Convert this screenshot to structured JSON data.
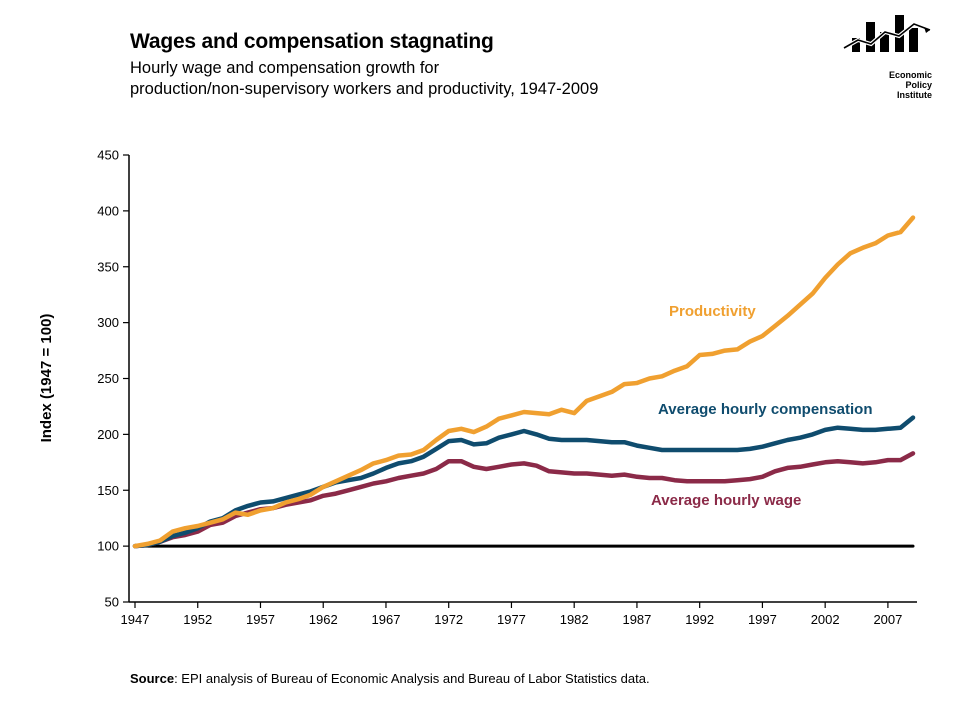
{
  "header": {
    "title": "Wages and compensation stagnating",
    "subtitle_line1": "Hourly wage and compensation growth for",
    "subtitle_line2": "production/non-supervisory workers and productivity, 1947-2009"
  },
  "logo": {
    "line1": "Economic",
    "line2": "Policy",
    "line3": "Institute"
  },
  "source": {
    "label": "Source",
    "text": ": EPI analysis of Bureau of Economic Analysis and Bureau of Labor Statistics data."
  },
  "chart_data": {
    "type": "line",
    "title": "Wages and compensation stagnating",
    "ylabel": "Index (1947 = 100)",
    "xlabel": "",
    "xlim": [
      1947,
      2009
    ],
    "ylim": [
      50,
      450
    ],
    "yticks": [
      50,
      100,
      150,
      200,
      250,
      300,
      350,
      400,
      450
    ],
    "xticks": [
      1947,
      1952,
      1957,
      1962,
      1967,
      1972,
      1977,
      1982,
      1987,
      1992,
      1997,
      2002,
      2007
    ],
    "grid": false,
    "legend": "inline",
    "x": [
      1947,
      1948,
      1949,
      1950,
      1951,
      1952,
      1953,
      1954,
      1955,
      1956,
      1957,
      1958,
      1959,
      1960,
      1961,
      1962,
      1963,
      1964,
      1965,
      1966,
      1967,
      1968,
      1969,
      1970,
      1971,
      1972,
      1973,
      1974,
      1975,
      1976,
      1977,
      1978,
      1979,
      1980,
      1981,
      1982,
      1983,
      1984,
      1985,
      1986,
      1987,
      1988,
      1989,
      1990,
      1991,
      1992,
      1993,
      1994,
      1995,
      1996,
      1997,
      1998,
      1999,
      2000,
      2001,
      2002,
      2003,
      2004,
      2005,
      2006,
      2007,
      2008,
      2009
    ],
    "series": [
      {
        "name": "Productivity",
        "color": "#f0a030",
        "values": [
          100,
          102,
          105,
          113,
          116,
          118,
          121,
          124,
          130,
          128,
          132,
          134,
          139,
          142,
          146,
          153,
          158,
          163,
          168,
          174,
          177,
          181,
          182,
          186,
          195,
          203,
          205,
          202,
          207,
          214,
          217,
          220,
          219,
          218,
          222,
          219,
          230,
          234,
          238,
          245,
          246,
          250,
          252,
          257,
          261,
          271,
          272,
          275,
          276,
          283,
          288,
          297,
          306,
          316,
          326,
          340,
          352,
          362,
          367,
          371,
          378,
          381,
          394
        ]
      },
      {
        "name": "Average hourly compensation",
        "color": "#0f4c6e",
        "values": [
          100,
          101,
          104,
          109,
          112,
          116,
          122,
          125,
          132,
          136,
          139,
          140,
          143,
          146,
          149,
          153,
          157,
          159,
          161,
          165,
          170,
          174,
          176,
          180,
          187,
          194,
          195,
          191,
          192,
          197,
          200,
          203,
          200,
          196,
          195,
          195,
          195,
          194,
          193,
          193,
          190,
          188,
          186,
          186,
          186,
          186,
          186,
          186,
          186,
          187,
          189,
          192,
          195,
          197,
          200,
          204,
          206,
          205,
          204,
          204,
          205,
          206,
          215
        ]
      },
      {
        "name": "Average hourly wage",
        "color": "#8b2a48",
        "values": [
          100,
          101,
          104,
          108,
          110,
          113,
          119,
          121,
          127,
          130,
          133,
          134,
          137,
          139,
          141,
          145,
          147,
          150,
          153,
          156,
          158,
          161,
          163,
          165,
          169,
          176,
          176,
          171,
          169,
          171,
          173,
          174,
          172,
          167,
          166,
          165,
          165,
          164,
          163,
          164,
          162,
          161,
          161,
          159,
          158,
          158,
          158,
          158,
          159,
          160,
          162,
          167,
          170,
          171,
          173,
          175,
          176,
          175,
          174,
          175,
          177,
          177,
          183
        ]
      },
      {
        "name": "",
        "color": "#000000",
        "values": [
          100,
          100,
          100,
          100,
          100,
          100,
          100,
          100,
          100,
          100,
          100,
          100,
          100,
          100,
          100,
          100,
          100,
          100,
          100,
          100,
          100,
          100,
          100,
          100,
          100,
          100,
          100,
          100,
          100,
          100,
          100,
          100,
          100,
          100,
          100,
          100,
          100,
          100,
          100,
          100,
          100,
          100,
          100,
          100,
          100,
          100,
          100,
          100,
          100,
          100,
          100,
          100,
          100,
          100,
          100,
          100,
          100,
          100,
          100,
          100,
          100,
          100,
          100
        ]
      }
    ]
  }
}
